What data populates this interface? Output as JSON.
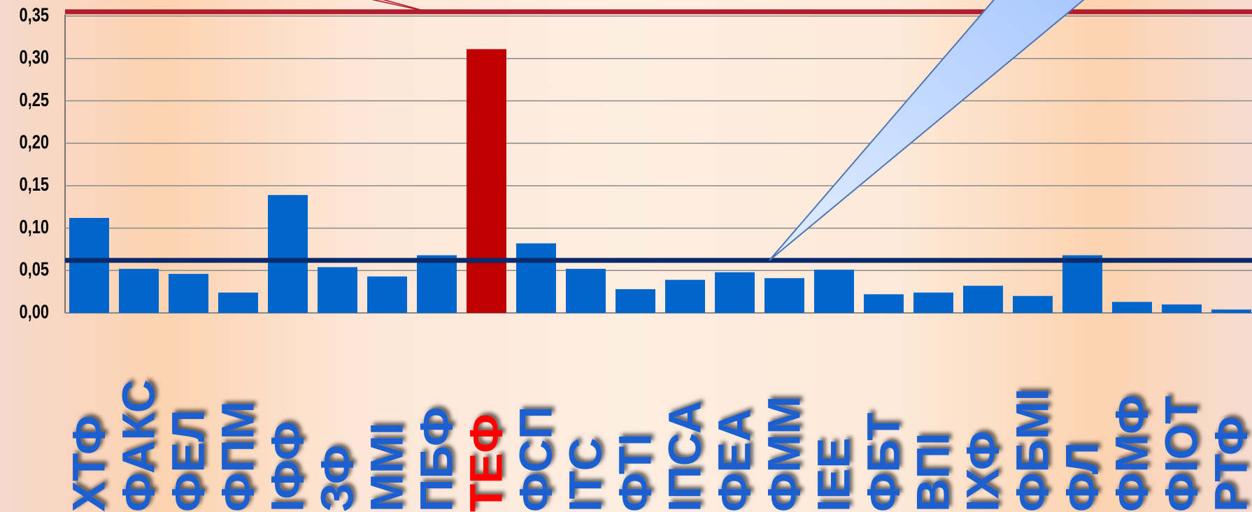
{
  "chart_data": {
    "type": "bar",
    "title": "",
    "xlabel": "",
    "ylabel": "",
    "ylim": [
      0,
      0.35
    ],
    "yticks": [
      "0,00",
      "0,05",
      "0,10",
      "0,15",
      "0,20",
      "0,25",
      "0,30",
      "0,35"
    ],
    "categories": [
      "ХТФ",
      "ФАКС",
      "ФЕЛ",
      "ФПМ",
      "ІФФ",
      "ЗФ",
      "ММІ",
      "ПБФ",
      "ТЕФ",
      "ФСП",
      "ІТС",
      "ФТІ",
      "ІПСА",
      "ФЕА",
      "ФММ",
      "ІЕЕ",
      "ФБТ",
      "ВПІ",
      "ІХФ",
      "ФБМІ",
      "ФЛ",
      "ФМФ",
      "ФІОТ",
      "РТФ"
    ],
    "values": [
      0.112,
      0.052,
      0.046,
      0.024,
      0.139,
      0.054,
      0.043,
      0.068,
      0.311,
      0.082,
      0.052,
      0.028,
      0.039,
      0.048,
      0.041,
      0.051,
      0.022,
      0.024,
      0.032,
      0.02,
      0.068,
      0.013,
      0.01,
      0.004
    ],
    "highlight_category": "ТЕФ",
    "reference_lines": [
      {
        "value": 0.355,
        "color": "#b01e2e"
      },
      {
        "value": 0.062,
        "color": "#0b2a6b"
      }
    ],
    "colors": {
      "bar": "#0066cc",
      "highlight_bar": "#c00000",
      "label": "#1a5fd0",
      "highlight_label": "#ff0000",
      "grid": "#8a8a8a",
      "axis_text": "#000000",
      "callout": "#c7ddff"
    },
    "grid": true
  }
}
